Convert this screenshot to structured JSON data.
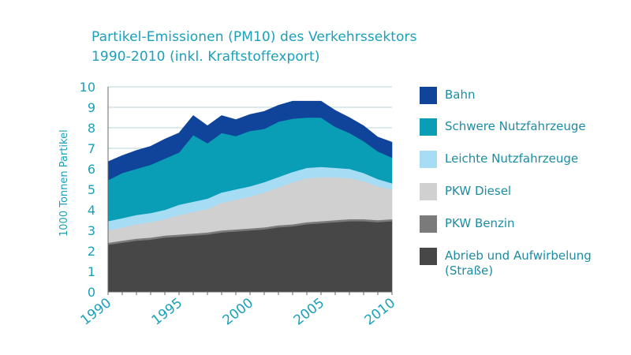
{
  "title": {
    "line1": "Partikel-Emissionen (PM10) des Verkehrssektors",
    "line2": "1990-2010 (inkl. Kraftstoffexport)"
  },
  "colors": {
    "title": "#1aa0b8",
    "axis_text": "#1aa0b8",
    "legend_text": "#1a8da3",
    "grid": "#b8d4dc",
    "axis": "#666666"
  },
  "chart_data": {
    "type": "area",
    "stacked": true,
    "title": "Partikel-Emissionen (PM10) des Verkehrssektors 1990-2010 (inkl. Kraftstoffexport)",
    "xlabel": "",
    "ylabel": "1000 Tonnen Partikel",
    "x": [
      1990,
      1991,
      1992,
      1993,
      1994,
      1995,
      1996,
      1997,
      1998,
      1999,
      2000,
      2001,
      2002,
      2003,
      2004,
      2005,
      2006,
      2007,
      2008,
      2009,
      2010
    ],
    "xlim": [
      1990,
      2010
    ],
    "ylim": [
      0,
      10
    ],
    "yticks": [
      "0",
      "1",
      "2",
      "3",
      "4",
      "5",
      "6",
      "7",
      "8",
      "9",
      "10"
    ],
    "xticks": [
      "1990",
      "1995",
      "2000",
      "2005",
      "2010"
    ],
    "grid": true,
    "legend_position": "right",
    "series": [
      {
        "name": "Abrieb und Aufwirbelung (Straße)",
        "color": "#474747",
        "values": [
          2.3,
          2.4,
          2.5,
          2.55,
          2.65,
          2.7,
          2.75,
          2.8,
          2.9,
          2.95,
          3.0,
          3.05,
          3.15,
          3.2,
          3.3,
          3.35,
          3.4,
          3.45,
          3.45,
          3.4,
          3.45
        ]
      },
      {
        "name": "PKW Benzin",
        "color": "#7a7a7a",
        "values": [
          0.1,
          0.1,
          0.1,
          0.1,
          0.1,
          0.1,
          0.1,
          0.1,
          0.1,
          0.1,
          0.1,
          0.1,
          0.1,
          0.1,
          0.1,
          0.1,
          0.1,
          0.1,
          0.1,
          0.1,
          0.1
        ]
      },
      {
        "name": "PKW Diesel",
        "color": "#d0d0d0",
        "values": [
          0.6,
          0.65,
          0.7,
          0.75,
          0.8,
          0.95,
          1.05,
          1.15,
          1.35,
          1.45,
          1.55,
          1.7,
          1.85,
          2.05,
          2.15,
          2.15,
          2.1,
          2.0,
          1.85,
          1.65,
          1.45
        ]
      },
      {
        "name": "Leichte Nutzfahrzeuge",
        "color": "#a6dcf4",
        "values": [
          0.45,
          0.45,
          0.45,
          0.45,
          0.45,
          0.5,
          0.5,
          0.5,
          0.5,
          0.5,
          0.5,
          0.5,
          0.5,
          0.5,
          0.5,
          0.5,
          0.45,
          0.45,
          0.4,
          0.35,
          0.3
        ]
      },
      {
        "name": "Schwere Nutzfahrzeuge",
        "color": "#099db6",
        "values": [
          2.0,
          2.2,
          2.25,
          2.35,
          2.5,
          2.55,
          3.25,
          2.7,
          2.9,
          2.6,
          2.7,
          2.6,
          2.7,
          2.6,
          2.45,
          2.4,
          2.0,
          1.75,
          1.55,
          1.35,
          1.25
        ]
      },
      {
        "name": "Bahn",
        "color": "#10439a",
        "values": [
          0.9,
          0.85,
          0.9,
          0.9,
          0.95,
          0.95,
          0.95,
          0.85,
          0.85,
          0.8,
          0.8,
          0.85,
          0.8,
          0.85,
          0.8,
          0.8,
          0.8,
          0.75,
          0.75,
          0.7,
          0.75
        ]
      }
    ],
    "legend": [
      {
        "label": "Bahn",
        "color": "#10439a"
      },
      {
        "label": "Schwere Nutzfahrzeuge",
        "color": "#099db6"
      },
      {
        "label": "Leichte Nutzfahrzeuge",
        "color": "#a6dcf4"
      },
      {
        "label": "PKW Diesel",
        "color": "#d0d0d0"
      },
      {
        "label": "PKW Benzin",
        "color": "#7a7a7a"
      },
      {
        "label": "Abrieb und Aufwirbelung\n(Straße)",
        "color": "#474747"
      }
    ]
  }
}
